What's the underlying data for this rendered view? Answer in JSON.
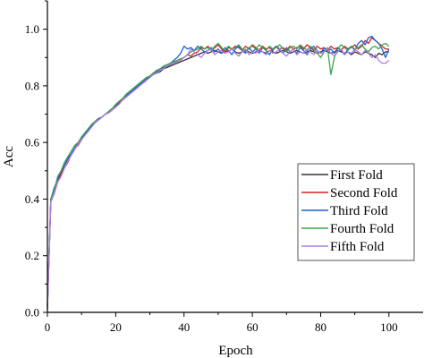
{
  "chart_data": {
    "type": "line",
    "xlabel": "Epoch",
    "ylabel": "Acc",
    "xlim": [
      0,
      110
    ],
    "ylim": [
      0.0,
      1.1
    ],
    "x_ticks": [
      0,
      20,
      40,
      60,
      80,
      100
    ],
    "x_tick_labels": [
      "0",
      "20",
      "40",
      "60",
      "80",
      "100"
    ],
    "y_ticks": [
      0.0,
      0.2,
      0.4,
      0.6,
      0.8,
      1.0
    ],
    "y_tick_labels": [
      "0.0",
      "0.2",
      "0.4",
      "0.6",
      "0.8",
      "1.0"
    ],
    "grid": false,
    "legend_position": "lower-right",
    "x": [
      0,
      1,
      2,
      3,
      4,
      5,
      6,
      7,
      8,
      9,
      10,
      11,
      12,
      13,
      14,
      15,
      16,
      17,
      18,
      19,
      20,
      21,
      22,
      23,
      24,
      25,
      26,
      27,
      28,
      29,
      30,
      31,
      32,
      33,
      34,
      35,
      36,
      37,
      38,
      39,
      40,
      41,
      42,
      43,
      44,
      45,
      46,
      47,
      48,
      49,
      50,
      51,
      52,
      53,
      54,
      55,
      56,
      57,
      58,
      59,
      60,
      61,
      62,
      63,
      64,
      65,
      66,
      67,
      68,
      69,
      70,
      71,
      72,
      73,
      74,
      75,
      76,
      77,
      78,
      79,
      80,
      81,
      82,
      83,
      84,
      85,
      86,
      87,
      88,
      89,
      90,
      91,
      92,
      93,
      94,
      95,
      96,
      97,
      98,
      99,
      100
    ],
    "series": [
      {
        "name": "First Fold",
        "color": "#333333",
        "values": [
          0.02,
          0.4,
          0.43,
          0.47,
          0.49,
          0.52,
          0.54,
          0.56,
          0.58,
          0.6,
          0.61,
          0.63,
          0.64,
          0.66,
          0.67,
          0.68,
          0.69,
          0.7,
          0.71,
          0.72,
          0.73,
          0.74,
          0.75,
          0.76,
          0.77,
          0.78,
          0.79,
          0.8,
          0.81,
          0.82,
          0.83,
          0.84,
          0.845,
          0.85,
          0.86,
          0.865,
          0.87,
          0.875,
          0.88,
          0.885,
          0.89,
          0.895,
          0.9,
          0.905,
          0.91,
          0.915,
          0.92,
          0.915,
          0.92,
          0.925,
          0.92,
          0.915,
          0.925,
          0.92,
          0.93,
          0.92,
          0.915,
          0.92,
          0.925,
          0.92,
          0.915,
          0.92,
          0.925,
          0.92,
          0.915,
          0.925,
          0.92,
          0.915,
          0.92,
          0.925,
          0.92,
          0.915,
          0.92,
          0.925,
          0.92,
          0.915,
          0.92,
          0.925,
          0.92,
          0.915,
          0.92,
          0.925,
          0.92,
          0.915,
          0.92,
          0.925,
          0.92,
          0.915,
          0.92,
          0.91,
          0.92,
          0.915,
          0.91,
          0.92,
          0.915,
          0.91,
          0.9,
          0.915,
          0.91,
          0.92,
          0.92
        ]
      },
      {
        "name": "Second Fold",
        "color": "#e0201b",
        "values": [
          0.01,
          0.39,
          0.42,
          0.46,
          0.49,
          0.51,
          0.53,
          0.56,
          0.58,
          0.59,
          0.61,
          0.63,
          0.645,
          0.66,
          0.67,
          0.68,
          0.69,
          0.7,
          0.705,
          0.715,
          0.725,
          0.74,
          0.75,
          0.76,
          0.77,
          0.785,
          0.79,
          0.805,
          0.81,
          0.82,
          0.83,
          0.84,
          0.85,
          0.855,
          0.86,
          0.87,
          0.875,
          0.88,
          0.89,
          0.895,
          0.9,
          0.91,
          0.905,
          0.915,
          0.92,
          0.935,
          0.93,
          0.94,
          0.925,
          0.935,
          0.945,
          0.93,
          0.92,
          0.935,
          0.93,
          0.94,
          0.935,
          0.925,
          0.94,
          0.93,
          0.945,
          0.935,
          0.925,
          0.94,
          0.93,
          0.935,
          0.925,
          0.94,
          0.93,
          0.935,
          0.925,
          0.94,
          0.93,
          0.935,
          0.94,
          0.93,
          0.945,
          0.935,
          0.925,
          0.94,
          0.93,
          0.935,
          0.925,
          0.94,
          0.93,
          0.935,
          0.925,
          0.94,
          0.93,
          0.935,
          0.945,
          0.93,
          0.94,
          0.96,
          0.95,
          0.97,
          0.96,
          0.95,
          0.94,
          0.93,
          0.93
        ]
      },
      {
        "name": "Third Fold",
        "color": "#1f5fd6",
        "values": [
          0.02,
          0.4,
          0.44,
          0.47,
          0.5,
          0.52,
          0.545,
          0.56,
          0.58,
          0.6,
          0.615,
          0.63,
          0.645,
          0.66,
          0.675,
          0.685,
          0.69,
          0.7,
          0.71,
          0.72,
          0.73,
          0.745,
          0.755,
          0.765,
          0.775,
          0.785,
          0.795,
          0.805,
          0.815,
          0.825,
          0.835,
          0.845,
          0.85,
          0.86,
          0.865,
          0.87,
          0.88,
          0.89,
          0.9,
          0.915,
          0.94,
          0.93,
          0.935,
          0.925,
          0.94,
          0.93,
          0.92,
          0.925,
          0.935,
          0.92,
          0.93,
          0.915,
          0.935,
          0.925,
          0.91,
          0.93,
          0.94,
          0.925,
          0.915,
          0.935,
          0.92,
          0.93,
          0.915,
          0.935,
          0.925,
          0.91,
          0.93,
          0.94,
          0.925,
          0.915,
          0.935,
          0.92,
          0.93,
          0.915,
          0.935,
          0.925,
          0.91,
          0.93,
          0.94,
          0.925,
          0.915,
          0.935,
          0.92,
          0.93,
          0.915,
          0.935,
          0.925,
          0.91,
          0.93,
          0.94,
          0.925,
          0.95,
          0.96,
          0.945,
          0.97,
          0.975,
          0.96,
          0.95,
          0.93,
          0.9,
          0.93
        ]
      },
      {
        "name": "Fourth Fold",
        "color": "#3aa64a",
        "values": [
          0.03,
          0.4,
          0.43,
          0.48,
          0.5,
          0.53,
          0.55,
          0.57,
          0.59,
          0.6,
          0.62,
          0.635,
          0.65,
          0.665,
          0.675,
          0.68,
          0.69,
          0.7,
          0.71,
          0.72,
          0.735,
          0.745,
          0.755,
          0.77,
          0.78,
          0.79,
          0.8,
          0.81,
          0.82,
          0.83,
          0.835,
          0.845,
          0.855,
          0.86,
          0.87,
          0.875,
          0.88,
          0.885,
          0.89,
          0.895,
          0.9,
          0.91,
          0.92,
          0.925,
          0.93,
          0.94,
          0.93,
          0.935,
          0.925,
          0.94,
          0.95,
          0.935,
          0.925,
          0.94,
          0.93,
          0.935,
          0.945,
          0.93,
          0.92,
          0.935,
          0.94,
          0.93,
          0.945,
          0.935,
          0.925,
          0.94,
          0.93,
          0.935,
          0.945,
          0.93,
          0.92,
          0.935,
          0.94,
          0.93,
          0.945,
          0.935,
          0.925,
          0.94,
          0.93,
          0.915,
          0.9,
          0.92,
          0.935,
          0.84,
          0.9,
          0.93,
          0.945,
          0.935,
          0.925,
          0.94,
          0.93,
          0.935,
          0.945,
          0.93,
          0.92,
          0.935,
          0.94,
          0.93,
          0.945,
          0.95,
          0.94
        ]
      },
      {
        "name": "Fifth Fold",
        "color": "#b07be0",
        "values": [
          0.01,
          0.39,
          0.42,
          0.46,
          0.48,
          0.51,
          0.535,
          0.555,
          0.575,
          0.595,
          0.61,
          0.625,
          0.64,
          0.655,
          0.67,
          0.68,
          0.69,
          0.7,
          0.705,
          0.715,
          0.725,
          0.735,
          0.75,
          0.76,
          0.77,
          0.78,
          0.79,
          0.8,
          0.81,
          0.82,
          0.83,
          0.84,
          0.845,
          0.855,
          0.86,
          0.87,
          0.875,
          0.88,
          0.885,
          0.89,
          0.9,
          0.91,
          0.93,
          0.92,
          0.91,
          0.9,
          0.915,
          0.925,
          0.93,
          0.91,
          0.92,
          0.925,
          0.915,
          0.92,
          0.93,
          0.915,
          0.905,
          0.92,
          0.93,
          0.91,
          0.92,
          0.915,
          0.93,
          0.92,
          0.91,
          0.925,
          0.915,
          0.92,
          0.93,
          0.915,
          0.905,
          0.92,
          0.93,
          0.91,
          0.92,
          0.915,
          0.93,
          0.92,
          0.91,
          0.925,
          0.915,
          0.92,
          0.93,
          0.915,
          0.905,
          0.92,
          0.93,
          0.91,
          0.92,
          0.915,
          0.93,
          0.92,
          0.91,
          0.925,
          0.915,
          0.9,
          0.91,
          0.89,
          0.88,
          0.88,
          0.89
        ]
      }
    ]
  }
}
